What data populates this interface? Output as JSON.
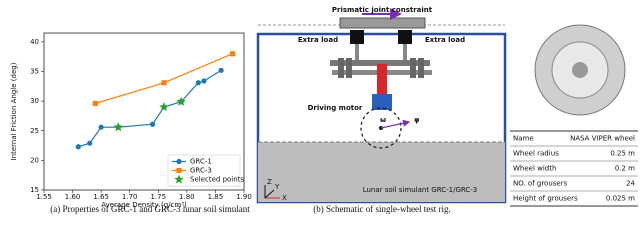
{
  "chart_data": {
    "type": "line",
    "xlabel": "Average Density (g/cm³)",
    "ylabel": "Internal Friction Angle (deg)",
    "xlim": [
      1.55,
      1.9
    ],
    "ylim": [
      15,
      41.5
    ],
    "xticks": [
      1.55,
      {
        "value": 1.6,
        "label": "1.60"
      },
      1.65,
      {
        "value": 1.7,
        "label": "1.70"
      },
      1.75,
      {
        "value": 1.8,
        "label": "1.80"
      },
      1.85,
      {
        "value": 1.9,
        "label": "1.90"
      }
    ],
    "yticks": [
      15,
      20,
      25,
      30,
      35,
      40
    ],
    "legend": "lower right",
    "series": [
      {
        "name": "GRC-1",
        "color": "#1f77b4",
        "marker": "circle",
        "line": true,
        "x": [
          1.61,
          1.63,
          1.65,
          1.68,
          1.74,
          1.76,
          1.79,
          1.82,
          1.83,
          1.86
        ],
        "values": [
          22.3,
          22.9,
          25.6,
          25.6,
          26.1,
          29.0,
          29.9,
          33.1,
          33.4,
          35.2
        ]
      },
      {
        "name": "GRC-3",
        "color": "#ff7f0e",
        "marker": "square",
        "line": true,
        "x": [
          1.64,
          1.76,
          1.88
        ],
        "values": [
          29.6,
          33.1,
          38.0
        ]
      },
      {
        "name": "Selected points",
        "color": "#2ca02c",
        "marker": "star",
        "line": false,
        "x": [
          1.68,
          1.76,
          1.79
        ],
        "values": [
          25.6,
          29.0,
          29.9
        ]
      }
    ]
  },
  "schematic": {
    "labels": [
      "Prismatic joint constraint",
      "Extra load",
      "Extra load",
      "Driving motor",
      "ω",
      "φ",
      "Lunar soil simulant GRC-1/GRC-3",
      "Z",
      "Y",
      "X"
    ]
  },
  "table": {
    "rows": [
      [
        "Name",
        "NASA VIPER wheel"
      ],
      [
        "Wheel radius",
        "0.25 m"
      ],
      [
        "Wheel width",
        "0.2 m"
      ],
      [
        "NO. of grousers",
        "24"
      ],
      [
        "Height of grousers",
        "0.025 m"
      ]
    ]
  },
  "captions": [
    "(a) Properties of GRC-1 and GRC-3 lunar soil simulant",
    "(b) Schematic of single-wheel test rig."
  ]
}
